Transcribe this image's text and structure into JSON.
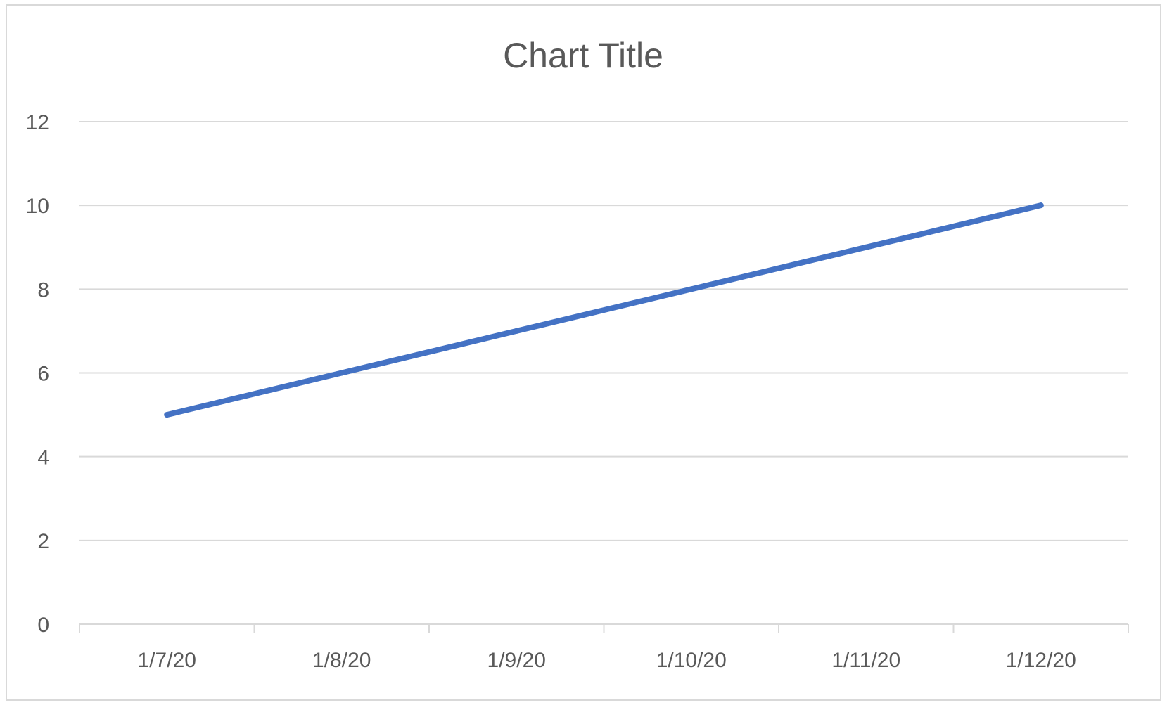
{
  "chart_data": {
    "type": "line",
    "title": "Chart Title",
    "xlabel": "",
    "ylabel": "",
    "categories": [
      "1/7/20",
      "1/8/20",
      "1/9/20",
      "1/10/20",
      "1/11/20",
      "1/12/20"
    ],
    "series": [
      {
        "values": [
          5,
          6,
          7,
          8,
          9,
          10
        ],
        "color": "#4472C4"
      }
    ],
    "ylim": [
      0,
      12
    ],
    "yticks": [
      0,
      2,
      4,
      6,
      8,
      10,
      12
    ],
    "grid": true,
    "legend": "none"
  }
}
